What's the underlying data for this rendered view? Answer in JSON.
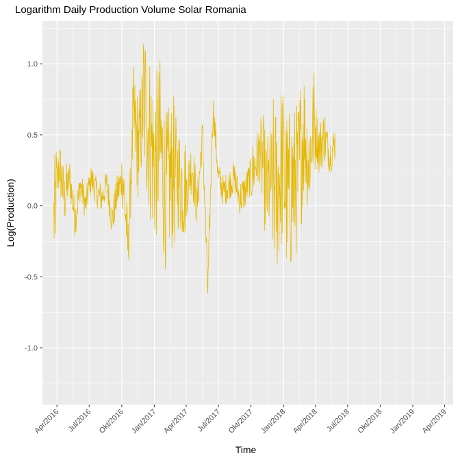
{
  "chart_data": {
    "type": "line",
    "title": "Logarithm Daily Production Volume Solar Romania",
    "xlabel": "Time",
    "ylabel": "Log(Production)",
    "x_tick_labels": [
      "Apr/2016",
      "Jul/2016",
      "Okt/2016",
      "Jan/2017",
      "Apr/2017",
      "Jul/2017",
      "Okt/2017",
      "Jan/2018",
      "Apr/2018",
      "Jul/2018",
      "Okt/2018",
      "Jan/2019",
      "Apr/2019"
    ],
    "y_tick_labels": [
      "-1.0",
      "-0.5",
      "0.0",
      "0.5",
      "1.0"
    ],
    "y_ticks": [
      -1.0,
      -0.5,
      0.0,
      0.5,
      1.0
    ],
    "xlim": [
      "2016-02-20",
      "2019-04-25"
    ],
    "ylim": [
      -1.4,
      1.3
    ],
    "grid": true,
    "legend": "none",
    "series": [
      {
        "color": "#E6B800",
        "x_start": "2016-03-23",
        "x_step": "15 days",
        "values": [
          -0.1,
          0.3,
          0.05,
          0.2,
          -0.1,
          0.15,
          0.0,
          0.2,
          0.1,
          0.05,
          0.15,
          -0.1,
          0.1,
          0.2,
          -0.3,
          0.6,
          0.4,
          0.75,
          0.5,
          0.3,
          0.45,
          0.1,
          0.2,
          0.25,
          0.15,
          0.1,
          0.3,
          0.0,
          0.5,
          -0.6,
          0.7,
          0.2,
          0.1,
          0.15,
          0.2,
          0.05,
          0.1,
          0.2,
          0.3,
          0.4,
          0.1,
          0.2,
          0.1,
          0.3,
          0.05,
          0.15,
          0.2,
          0.55,
          0.3,
          0.6,
          0.4,
          0.5,
          0.35,
          0.45
        ]
      }
    ]
  }
}
